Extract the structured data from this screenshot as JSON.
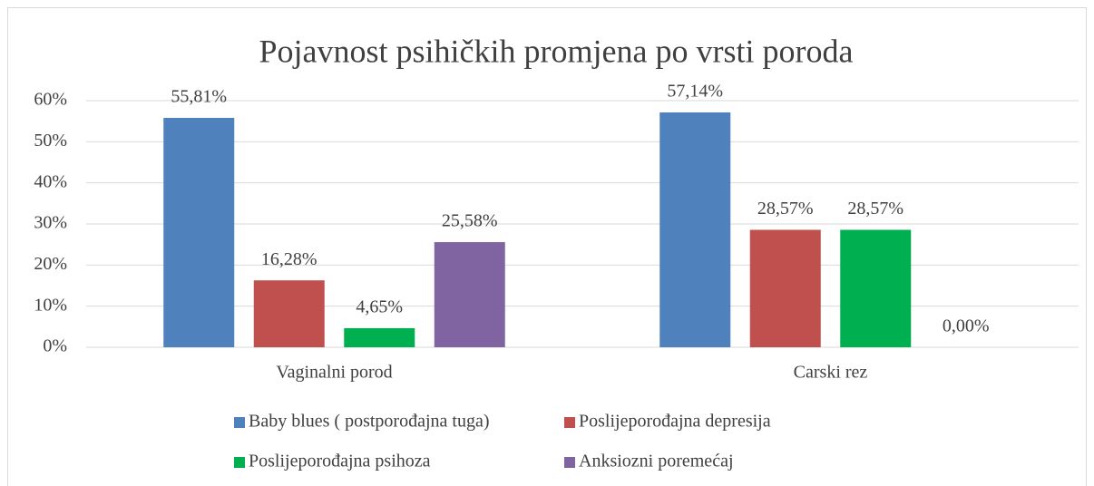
{
  "chart_data": {
    "type": "bar",
    "title": "Pojavnost psihičkih promjena po vrsti poroda",
    "categories": [
      "Vaginalni porod",
      "Carski rez"
    ],
    "series": [
      {
        "name": "Baby blues ( postporođajna tuga)",
        "color": "#4f81bd",
        "values": [
          55.81,
          57.14
        ],
        "value_labels": [
          "55,81%",
          "57,14%"
        ]
      },
      {
        "name": "Poslijeporođajna depresija",
        "color": "#c0504d",
        "values": [
          16.28,
          28.57
        ],
        "value_labels": [
          "16,28%",
          "28,57%"
        ]
      },
      {
        "name": "Poslijeporođajna psihoza",
        "color": "#00b050",
        "values": [
          4.65,
          28.57
        ],
        "value_labels": [
          "4,65%",
          "28,57%"
        ]
      },
      {
        "name": "Anksiozni poremećaj",
        "color": "#8064a2",
        "values": [
          25.58,
          0
        ],
        "value_labels": [
          "25,58%",
          "0,00%"
        ]
      }
    ],
    "ylim": [
      0,
      60
    ],
    "yticks": [
      {
        "value": 0,
        "label": "0%"
      },
      {
        "value": 10,
        "label": "10%"
      },
      {
        "value": 20,
        "label": "20%"
      },
      {
        "value": 30,
        "label": "30%"
      },
      {
        "value": 40,
        "label": "40%"
      },
      {
        "value": 50,
        "label": "50%"
      },
      {
        "value": 60,
        "label": "60%"
      }
    ],
    "grid": true,
    "legend": "bottom"
  }
}
